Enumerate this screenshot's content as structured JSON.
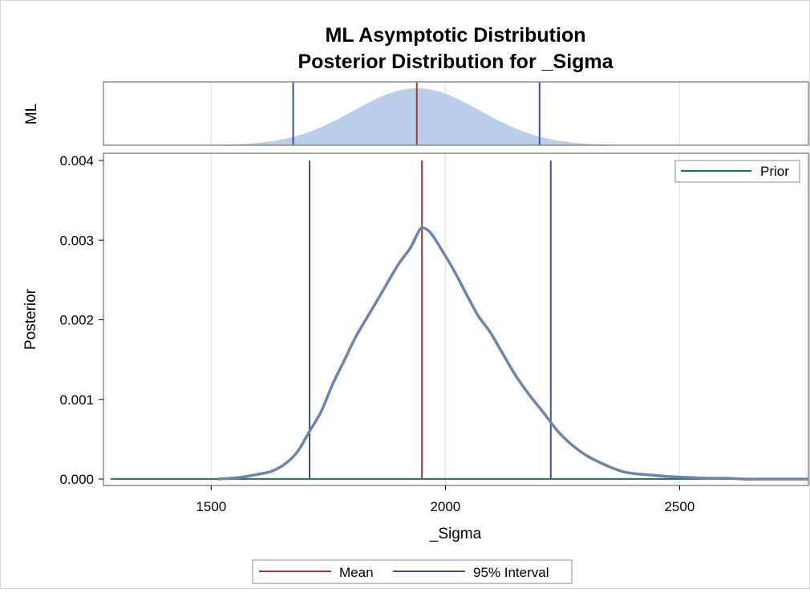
{
  "title_line1": "ML Asymptotic Distribution",
  "title_line2": "Posterior Distribution for _Sigma",
  "colors": {
    "mean": "#A23A3A",
    "interval": "#3E4F94",
    "prior": "#1F6B5E",
    "posterior_line": "#6E84A8",
    "ml_fill": "#BACFE7",
    "frame": "#8C8C8C",
    "grid": "#E3E3E3",
    "text": "#000000"
  },
  "chart_data": [
    {
      "type": "area",
      "panel": "ML",
      "ylabel": "ML",
      "xlim": [
        1270,
        2775
      ],
      "ml_mean": 1939,
      "ml_sd": 135,
      "interval_lines": [
        1675,
        2201
      ],
      "mean_line": 1939
    },
    {
      "type": "line",
      "panel": "Posterior",
      "xlabel": "_Sigma",
      "ylabel": "Posterior",
      "xlim": [
        1270,
        2775
      ],
      "ylim": [
        0,
        0.004
      ],
      "xticks": [
        1500,
        2000,
        2500
      ],
      "xtick_labels": [
        "1500",
        "2000",
        "2500"
      ],
      "yticks": [
        0,
        0.001,
        0.002,
        0.003,
        0.004
      ],
      "ytick_labels": [
        "0.000",
        "0.001",
        "0.002",
        "0.003",
        "0.004"
      ],
      "grid": true,
      "mean_line": 1950,
      "interval_lines": [
        1710,
        2225
      ],
      "series": [
        {
          "name": "",
          "x": [
            1515,
            1560,
            1600,
            1630,
            1660,
            1685,
            1710,
            1735,
            1760,
            1785,
            1810,
            1840,
            1870,
            1900,
            1925,
            1945,
            1955,
            1970,
            1995,
            2020,
            2045,
            2070,
            2095,
            2120,
            2150,
            2180,
            2210,
            2240,
            2270,
            2300,
            2340,
            2375,
            2400,
            2440,
            2480,
            2520,
            2560,
            2600,
            2640,
            2680,
            2720,
            2775
          ],
          "y": [
            0.0,
            2e-05,
            6e-05,
            0.0001,
            0.0002,
            0.00035,
            0.0006,
            0.00085,
            0.0012,
            0.0015,
            0.0018,
            0.0021,
            0.0024,
            0.0027,
            0.0029,
            0.00313,
            0.00315,
            0.00308,
            0.00285,
            0.0026,
            0.00232,
            0.00205,
            0.00185,
            0.0016,
            0.0013,
            0.00105,
            0.00083,
            0.0006,
            0.00043,
            0.0003,
            0.00018,
            0.0001,
            7e-05,
            5e-05,
            3e-05,
            2e-05,
            1e-05,
            1e-05,
            0.0,
            0.0,
            0.0,
            0.0
          ]
        },
        {
          "name": "Prior",
          "x": [
            1285,
            2775
          ],
          "y": [
            1e-06,
            1e-06
          ]
        }
      ],
      "legend_inside": {
        "position": "top-right",
        "entries": [
          "Prior"
        ]
      },
      "legend_bottom": {
        "position": "bottom",
        "entries": [
          "Mean",
          "95% Interval"
        ]
      }
    }
  ]
}
